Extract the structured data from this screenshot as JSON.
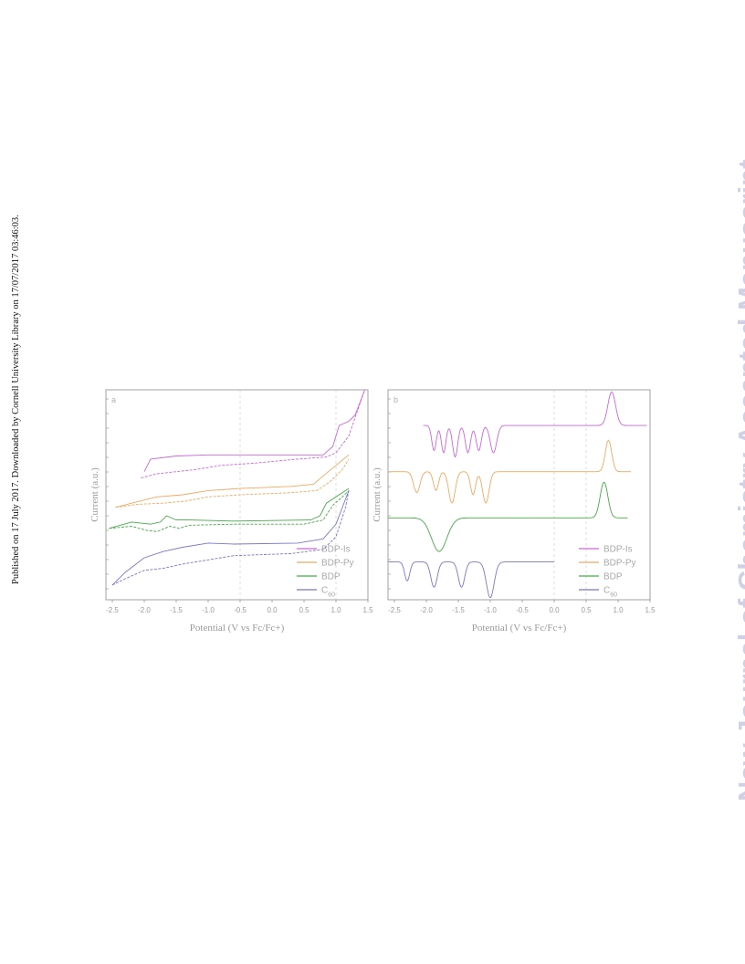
{
  "side_note": "Published on 17 July 2017. Downloaded by Cornell University Library on 17/07/2017 03:46:03.",
  "watermark": "New Journal of Chemistry Accepted Manuscript",
  "chart_data": [
    {
      "type": "line",
      "panel_label": "a",
      "xlabel": "Potential (V vs Fc/Fc+)",
      "ylabel": "Current (a.u.)",
      "xlim": [
        -2.6,
        1.5
      ],
      "ylim": [
        0,
        10
      ],
      "xticks": [
        "-2.5",
        "-2.0",
        "-1.5",
        "-1.0",
        "-0.5",
        "0.0",
        "0.5",
        "1.0",
        "1.5"
      ],
      "xtick_values": [
        -2.5,
        -2.0,
        -1.5,
        -1.0,
        -0.5,
        0.0,
        0.5,
        1.0,
        1.5
      ],
      "grid": "dashed vertical at -0.5 and 1.0",
      "legend_position": "bottom-right",
      "series": [
        {
          "name": "BDP-Is",
          "color": "#cc66dd",
          "upper": [
            [
              -2.0,
              6.1
            ],
            [
              -1.9,
              6.7
            ],
            [
              -1.5,
              6.85
            ],
            [
              -1.0,
              6.9
            ],
            [
              0.0,
              6.9
            ],
            [
              0.8,
              6.9
            ],
            [
              0.95,
              7.3
            ],
            [
              1.05,
              8.3
            ],
            [
              1.2,
              8.5
            ],
            [
              1.3,
              8.8
            ],
            [
              1.45,
              10
            ]
          ],
          "lower": [
            [
              -2.05,
              5.8
            ],
            [
              -1.8,
              6.0
            ],
            [
              -1.5,
              6.1
            ],
            [
              -1.2,
              6.2
            ],
            [
              -0.8,
              6.4
            ],
            [
              -0.3,
              6.5
            ],
            [
              0.4,
              6.7
            ],
            [
              0.85,
              6.8
            ],
            [
              1.0,
              7.0
            ],
            [
              1.2,
              7.8
            ],
            [
              1.45,
              10
            ]
          ]
        },
        {
          "name": "BDP-Py",
          "color": "#f0a860",
          "upper": [
            [
              -2.45,
              4.4
            ],
            [
              -2.2,
              4.6
            ],
            [
              -1.8,
              4.9
            ],
            [
              -1.4,
              5.0
            ],
            [
              -1.0,
              5.2
            ],
            [
              -0.5,
              5.3
            ],
            [
              0.3,
              5.4
            ],
            [
              0.65,
              5.5
            ],
            [
              0.8,
              5.9
            ],
            [
              1.0,
              6.4
            ],
            [
              1.2,
              6.9
            ]
          ],
          "lower": [
            [
              -2.45,
              4.4
            ],
            [
              -2.1,
              4.55
            ],
            [
              -1.7,
              4.6
            ],
            [
              -1.35,
              4.7
            ],
            [
              -1.0,
              4.9
            ],
            [
              -0.5,
              5.0
            ],
            [
              0.3,
              5.1
            ],
            [
              0.7,
              5.2
            ],
            [
              0.9,
              5.6
            ],
            [
              1.1,
              6.2
            ],
            [
              1.2,
              6.7
            ]
          ]
        },
        {
          "name": "BDP",
          "color": "#44aa44",
          "upper": [
            [
              -2.55,
              3.4
            ],
            [
              -2.2,
              3.7
            ],
            [
              -1.9,
              3.6
            ],
            [
              -1.75,
              3.7
            ],
            [
              -1.65,
              4.0
            ],
            [
              -1.5,
              3.8
            ],
            [
              -1.3,
              3.8
            ],
            [
              -0.6,
              3.75
            ],
            [
              0.6,
              3.8
            ],
            [
              0.75,
              4.0
            ],
            [
              0.85,
              4.6
            ],
            [
              1.05,
              5.0
            ],
            [
              1.2,
              5.3
            ]
          ],
          "lower": [
            [
              -2.55,
              3.4
            ],
            [
              -2.2,
              3.5
            ],
            [
              -1.95,
              3.3
            ],
            [
              -1.8,
              3.25
            ],
            [
              -1.6,
              3.5
            ],
            [
              -1.45,
              3.4
            ],
            [
              -1.3,
              3.55
            ],
            [
              -0.6,
              3.6
            ],
            [
              0.5,
              3.6
            ],
            [
              0.8,
              3.8
            ],
            [
              0.95,
              4.5
            ],
            [
              1.1,
              4.9
            ],
            [
              1.2,
              5.2
            ]
          ]
        },
        {
          "name": "C60",
          "color": "#7777cc",
          "upper": [
            [
              -2.5,
              0.7
            ],
            [
              -2.3,
              1.3
            ],
            [
              -2.0,
              2.0
            ],
            [
              -1.7,
              2.3
            ],
            [
              -1.4,
              2.5
            ],
            [
              -1.0,
              2.7
            ],
            [
              -0.6,
              2.65
            ],
            [
              0.4,
              2.7
            ],
            [
              0.8,
              2.9
            ],
            [
              1.0,
              3.6
            ],
            [
              1.15,
              4.8
            ],
            [
              1.2,
              5.2
            ]
          ],
          "lower": [
            [
              -2.5,
              0.7
            ],
            [
              -2.3,
              1.0
            ],
            [
              -2.0,
              1.4
            ],
            [
              -1.7,
              1.5
            ],
            [
              -1.4,
              1.7
            ],
            [
              -1.0,
              1.9
            ],
            [
              -0.6,
              2.1
            ],
            [
              0.3,
              2.2
            ],
            [
              0.8,
              2.4
            ],
            [
              1.0,
              3.0
            ],
            [
              1.15,
              4.4
            ],
            [
              1.2,
              5.2
            ]
          ]
        }
      ]
    },
    {
      "type": "line",
      "panel_label": "b",
      "xlabel": "Potential (V vs Fc/Fc+)",
      "ylabel": "Current (a.u.)",
      "xlim": [
        -2.6,
        1.5
      ],
      "ylim": [
        0,
        10
      ],
      "xticks": [
        "-2.5",
        "-2.0",
        "-1.5",
        "-1.0",
        "-0.5",
        "0.0",
        "0.5",
        "1.0",
        "1.5"
      ],
      "xtick_values": [
        -2.5,
        -2.0,
        -1.5,
        -1.0,
        -0.5,
        0.0,
        0.5,
        1.0,
        1.5
      ],
      "grid": "dashed vertical at 0.0 and 0.5",
      "legend_position": "bottom-right",
      "series": [
        {
          "name": "BDP-Is",
          "color": "#cc66dd",
          "baseline": 8.3,
          "peaks": [
            [
              -1.88,
              -1.2,
              0.035
            ],
            [
              -1.73,
              -1.3,
              0.035
            ],
            [
              -1.55,
              -1.5,
              0.04
            ],
            [
              -1.35,
              -1.3,
              0.04
            ],
            [
              -1.18,
              -1.2,
              0.04
            ],
            [
              -0.95,
              -1.3,
              0.05
            ],
            [
              0.9,
              1.6,
              0.06
            ]
          ],
          "xrange": [
            -2.05,
            1.45
          ]
        },
        {
          "name": "BDP-Py",
          "color": "#f0a860",
          "baseline": 6.1,
          "peaks": [
            [
              -2.15,
              -1.0,
              0.05
            ],
            [
              -1.85,
              -0.9,
              0.04
            ],
            [
              -1.6,
              -1.5,
              0.05
            ],
            [
              -1.27,
              -1.1,
              0.04
            ],
            [
              -1.07,
              -1.5,
              0.05
            ],
            [
              0.85,
              1.5,
              0.05
            ]
          ],
          "xrange": [
            -2.6,
            1.2
          ]
        },
        {
          "name": "BDP",
          "color": "#44aa44",
          "baseline": 3.9,
          "peaks": [
            [
              -1.8,
              -1.6,
              0.12
            ],
            [
              0.78,
              1.7,
              0.06
            ]
          ],
          "xrange": [
            -2.6,
            1.15
          ]
        },
        {
          "name": "C60",
          "color": "#7777cc",
          "baseline": 1.8,
          "peaks": [
            [
              -2.3,
              -0.9,
              0.04
            ],
            [
              -1.88,
              -1.2,
              0.05
            ],
            [
              -1.45,
              -1.2,
              0.05
            ],
            [
              -1.0,
              -1.7,
              0.06
            ]
          ],
          "xrange": [
            -2.6,
            0.0
          ]
        }
      ]
    }
  ]
}
